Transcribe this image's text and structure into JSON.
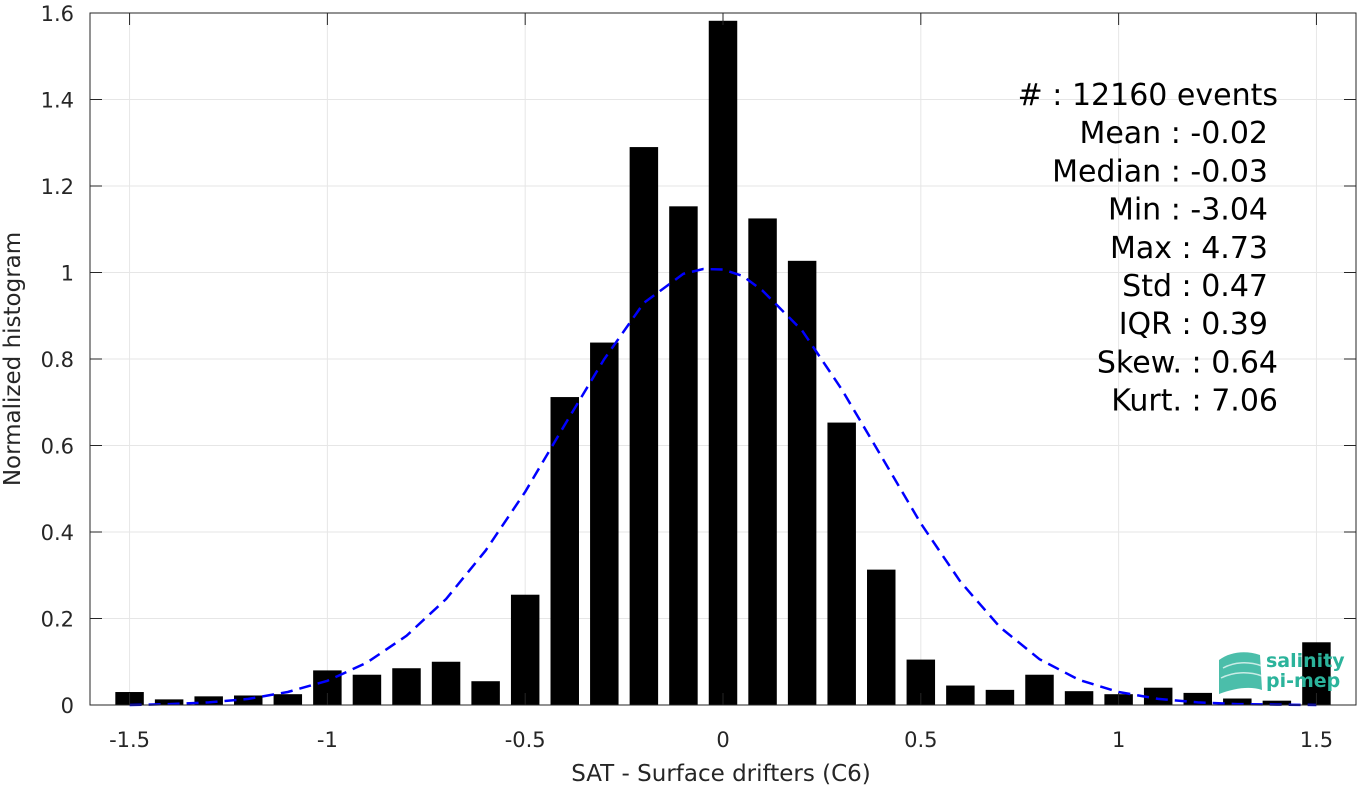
{
  "chart_data": {
    "type": "bar",
    "xlabel": "SAT - Surface drifters (C6)",
    "ylabel": "Normalized histogram",
    "xlim": [
      -1.6,
      1.6
    ],
    "ylim": [
      0,
      1.6
    ],
    "xticks": [
      -1.5,
      -1,
      -0.5,
      0,
      0.5,
      1,
      1.5
    ],
    "xtick_labels": [
      "-1.5",
      "-1",
      "-0.5",
      "0",
      "0.5",
      "1",
      "1.5"
    ],
    "yticks": [
      0,
      0.2,
      0.4,
      0.6,
      0.8,
      1,
      1.2,
      1.4,
      1.6
    ],
    "ytick_labels": [
      "0",
      "0.2",
      "0.4",
      "0.6",
      "0.8",
      "1",
      "1.2",
      "1.4",
      "1.6"
    ],
    "grid": true,
    "bar_color": "#000000",
    "fit_color": "#0000ff",
    "bin_width": 0.1,
    "series": [
      {
        "type": "bar",
        "x": [
          -1.5,
          -1.4,
          -1.3,
          -1.2,
          -1.1,
          -1.0,
          -0.9,
          -0.8,
          -0.7,
          -0.6,
          -0.5,
          -0.4,
          -0.3,
          -0.2,
          -0.1,
          0.0,
          0.1,
          0.2,
          0.3,
          0.4,
          0.5,
          0.6,
          0.7,
          0.8,
          0.9,
          1.0,
          1.1,
          1.2,
          1.3,
          1.4,
          1.5
        ],
        "values": [
          0.03,
          0.013,
          0.02,
          0.022,
          0.025,
          0.08,
          0.07,
          0.085,
          0.1,
          0.055,
          0.255,
          0.712,
          0.838,
          1.29,
          1.153,
          1.582,
          1.125,
          1.027,
          0.653,
          0.313,
          0.105,
          0.045,
          0.035,
          0.07,
          0.032,
          0.025,
          0.04,
          0.028,
          0.015,
          0.01,
          0.145
        ]
      },
      {
        "type": "line",
        "style": "dashed",
        "x": [
          -1.5,
          -1.4,
          -1.3,
          -1.2,
          -1.1,
          -1.0,
          -0.9,
          -0.8,
          -0.7,
          -0.6,
          -0.5,
          -0.4,
          -0.3,
          -0.2,
          -0.1,
          -0.05,
          0.0,
          0.05,
          0.1,
          0.2,
          0.3,
          0.4,
          0.5,
          0.6,
          0.7,
          0.8,
          0.9,
          1.0,
          1.1,
          1.2,
          1.3,
          1.4,
          1.5
        ],
        "values": [
          0.0,
          0.002,
          0.006,
          0.014,
          0.03,
          0.056,
          0.098,
          0.16,
          0.245,
          0.357,
          0.493,
          0.648,
          0.8,
          0.93,
          0.997,
          1.008,
          1.007,
          0.992,
          0.958,
          0.866,
          0.73,
          0.575,
          0.42,
          0.285,
          0.18,
          0.106,
          0.058,
          0.03,
          0.014,
          0.006,
          0.002,
          0.001,
          0.0
        ]
      }
    ],
    "annotations": [
      "#  : 12160 events",
      "Mean : -0.02",
      "Median : -0.03",
      "Min : -3.04",
      "Max : 4.73",
      "Std : 0.47",
      "IQR : 0.39",
      "Skew. : 0.64",
      "Kurt. : 7.06"
    ]
  },
  "logo": {
    "text_line1": "salinity",
    "text_line2": "pi-mep",
    "color": "#2bb39b"
  }
}
